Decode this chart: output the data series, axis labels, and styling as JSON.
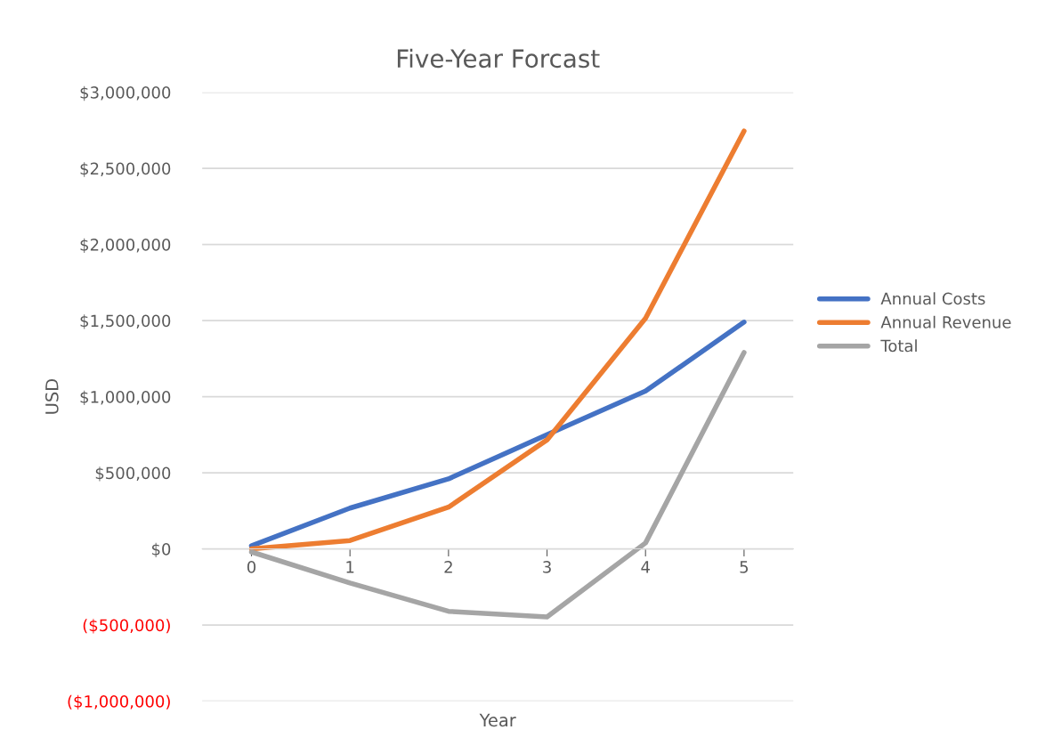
{
  "chart_data": {
    "type": "line",
    "title": "Five-Year Forcast",
    "xlabel": "Year",
    "ylabel": "USD",
    "categories": [
      "0",
      "1",
      "2",
      "3",
      "4",
      "5"
    ],
    "series": [
      {
        "name": "Annual Costs",
        "color": "#4472c4",
        "values": [
          20000,
          268000,
          460000,
          750000,
          1037000,
          1490000
        ]
      },
      {
        "name": "Annual Revenue",
        "color": "#ed7d31",
        "values": [
          0,
          55000,
          274000,
          716000,
          1515000,
          2745000
        ]
      },
      {
        "name": "Total",
        "color": "#a5a5a5",
        "values": [
          -20000,
          -224000,
          -410000,
          -447000,
          39000,
          1290000
        ]
      }
    ],
    "ylim": [
      -1000000,
      3000000
    ],
    "yticks": [
      {
        "value": -1000000,
        "label": "($1,000,000)"
      },
      {
        "value": -500000,
        "label": "($500,000)"
      },
      {
        "value": 0,
        "label": "$0"
      },
      {
        "value": 500000,
        "label": "$500,000"
      },
      {
        "value": 1000000,
        "label": "$1,000,000"
      },
      {
        "value": 1500000,
        "label": "$1,500,000"
      },
      {
        "value": 2000000,
        "label": "$2,000,000"
      },
      {
        "value": 2500000,
        "label": "$2,500,000"
      },
      {
        "value": 3000000,
        "label": "$3,000,000"
      }
    ],
    "grid": "y",
    "legend": "right",
    "marker": "none",
    "line_style": "solid"
  }
}
